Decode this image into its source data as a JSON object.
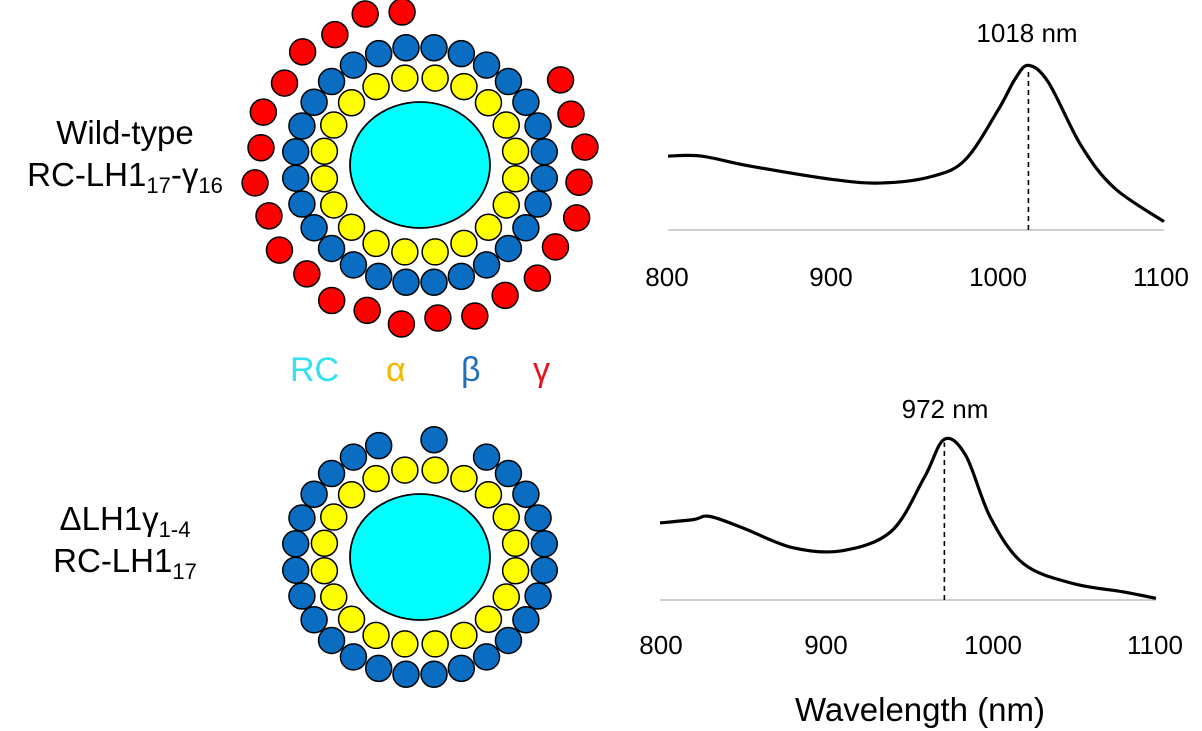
{
  "labels": {
    "wild_type_line1": "Wild-type",
    "wild_type_line2_base": "RC-LH1",
    "wild_type_line2_sub1": "17",
    "wild_type_line2_mid": "-γ",
    "wild_type_line2_sub2": "16",
    "mutant_line1_base": "ΔLH1γ",
    "mutant_line1_sub": "1-4",
    "mutant_line2_base": "RC-LH1",
    "mutant_line2_sub": "17"
  },
  "legend": {
    "rc": {
      "text": "RC",
      "color": "#33e1f0"
    },
    "alpha": {
      "text": "α",
      "color": "#f5b800"
    },
    "beta": {
      "text": "β",
      "color": "#1f6fbf"
    },
    "gamma": {
      "text": "γ",
      "color": "#e8141c"
    }
  },
  "colors": {
    "rc_fill": "#00ffff",
    "alpha_fill": "#ffff00",
    "beta_fill": "#0a6dc2",
    "gamma_fill": "#ff0000",
    "outline": "#000000"
  },
  "spectra": {
    "top_peak_label": "1018 nm",
    "bottom_peak_label": "972 nm",
    "x_ticks": [
      "800",
      "900",
      "1000",
      "1100"
    ],
    "x_axis_label": "Wavelength (nm)"
  },
  "chart_data": [
    {
      "type": "line",
      "series": [
        {
          "name": "",
          "x": [
            800,
            820,
            850,
            900,
            930,
            960,
            980,
            1000,
            1010,
            1018,
            1030,
            1050,
            1070,
            1100
          ],
          "values": [
            0.44,
            0.44,
            0.38,
            0.3,
            0.28,
            0.32,
            0.42,
            0.72,
            0.9,
            0.98,
            0.88,
            0.5,
            0.25,
            0.05
          ]
        }
      ],
      "peak": 1018,
      "xlim": [
        800,
        1100
      ]
    },
    {
      "type": "line",
      "series": [
        {
          "name": "",
          "x": [
            800,
            820,
            830,
            850,
            880,
            910,
            940,
            960,
            972,
            985,
            1000,
            1020,
            1050,
            1080,
            1100
          ],
          "values": [
            0.47,
            0.49,
            0.51,
            0.44,
            0.32,
            0.3,
            0.42,
            0.75,
            0.98,
            0.88,
            0.5,
            0.22,
            0.1,
            0.05,
            0.01
          ]
        }
      ],
      "peak": 972,
      "xlim": [
        800,
        1100
      ]
    }
  ]
}
